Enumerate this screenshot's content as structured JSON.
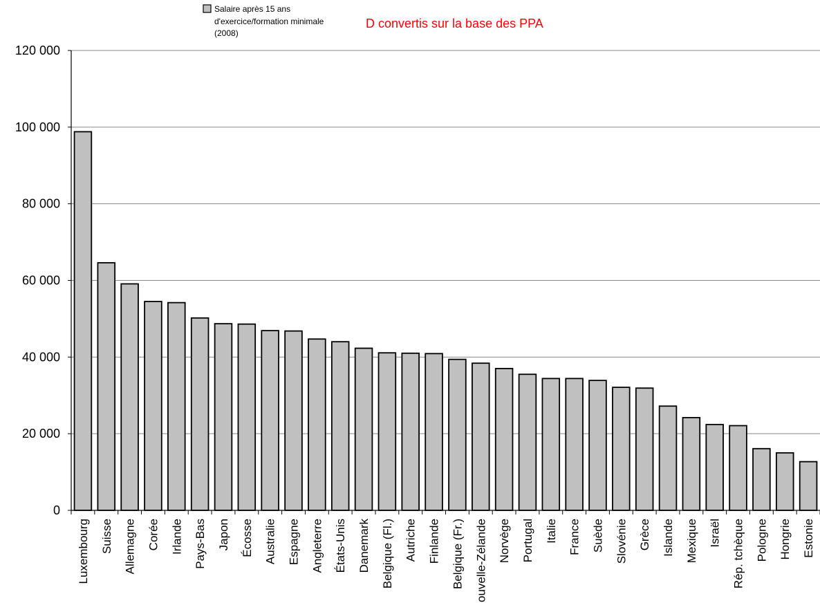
{
  "chart_data": {
    "type": "bar",
    "title": "D convertis sur la base des PPA",
    "legend": {
      "lines": [
        "Salaire après 15 ans",
        "d'exercice/formation minimale",
        "(2008)"
      ],
      "swatch_color": "#c0c0c0",
      "placement": "top"
    },
    "bar_color": "#c0c0c0",
    "bar_stroke": "#000000",
    "ylim": [
      0,
      120000
    ],
    "grid": true,
    "yticks": [
      {
        "value": 0,
        "label": "0"
      },
      {
        "value": 20000,
        "label": "20 000"
      },
      {
        "value": 40000,
        "label": "40 000"
      },
      {
        "value": 60000,
        "label": "60 000"
      },
      {
        "value": 80000,
        "label": "80 000"
      },
      {
        "value": 100000,
        "label": "100 000"
      },
      {
        "value": 120000,
        "label": "120 000"
      }
    ],
    "categories": [
      "Luxembourg",
      "Suisse",
      "Allemagne",
      "Corée",
      "Irlande",
      "Pays-Bas",
      "Japon",
      "Écosse",
      "Australie",
      "Espagne",
      "Angleterre",
      "États-Unis",
      "Danemark",
      "Belgique (Fl.)",
      "Autriche",
      "Finlande",
      "Belgique (Fr.)",
      "Nouvelle-Zélande",
      "Norvège",
      "Portugal",
      "Italie",
      "France",
      "Suède",
      "Slovénie",
      "Grèce",
      "Islande",
      "Mexique",
      "Israël",
      "Rép. tchèque",
      "Pologne",
      "Hongrie",
      "Estonie"
    ],
    "values": [
      98800,
      64600,
      59100,
      54500,
      54200,
      50200,
      48700,
      48600,
      46900,
      46800,
      44700,
      44000,
      42300,
      41100,
      41000,
      40900,
      39400,
      38400,
      37000,
      35500,
      34400,
      34400,
      33900,
      32100,
      31900,
      27200,
      24200,
      22400,
      22100,
      16100,
      15000,
      12700
    ]
  }
}
